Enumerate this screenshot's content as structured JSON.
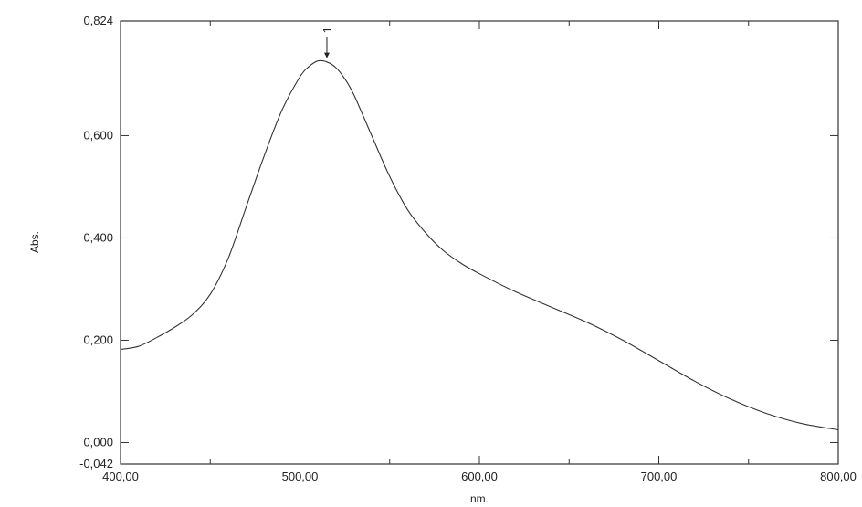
{
  "chart_data": {
    "type": "line",
    "title": "",
    "xlabel": "nm.",
    "ylabel": "Abs.",
    "xlim": [
      400,
      800
    ],
    "ylim": [
      -0.042,
      0.824
    ],
    "grid": false,
    "legend": "none",
    "x_ticks": [
      {
        "value": 400,
        "label": "400,00"
      },
      {
        "value": 500,
        "label": "500,00"
      },
      {
        "value": 600,
        "label": "600,00"
      },
      {
        "value": 700,
        "label": "700,00"
      },
      {
        "value": 800,
        "label": "800,00"
      }
    ],
    "y_ticks": [
      {
        "value": 0.824,
        "label": "0,824"
      },
      {
        "value": 0.6,
        "label": "0,600"
      },
      {
        "value": 0.4,
        "label": "0,400"
      },
      {
        "value": 0.2,
        "label": "0,200"
      },
      {
        "value": 0.0,
        "label": "0,000"
      },
      {
        "value": -0.042,
        "label": "-0,042"
      }
    ],
    "series": [
      {
        "color": "#333333",
        "x": [
          400,
          410,
          420,
          430,
          440,
          450,
          460,
          470,
          480,
          490,
          500,
          505,
          510,
          515,
          520,
          525,
          530,
          540,
          550,
          560,
          570,
          580,
          590,
          600,
          620,
          640,
          660,
          680,
          700,
          720,
          740,
          760,
          780,
          800
        ],
        "y": [
          0.182,
          0.188,
          0.205,
          0.225,
          0.25,
          0.29,
          0.36,
          0.46,
          0.56,
          0.65,
          0.715,
          0.735,
          0.746,
          0.744,
          0.733,
          0.711,
          0.68,
          0.6,
          0.52,
          0.455,
          0.41,
          0.375,
          0.35,
          0.33,
          0.295,
          0.265,
          0.235,
          0.2,
          0.16,
          0.12,
          0.085,
          0.057,
          0.037,
          0.025
        ]
      }
    ],
    "annotations": [
      {
        "text": "1",
        "x": 515,
        "y": 0.746
      }
    ]
  }
}
